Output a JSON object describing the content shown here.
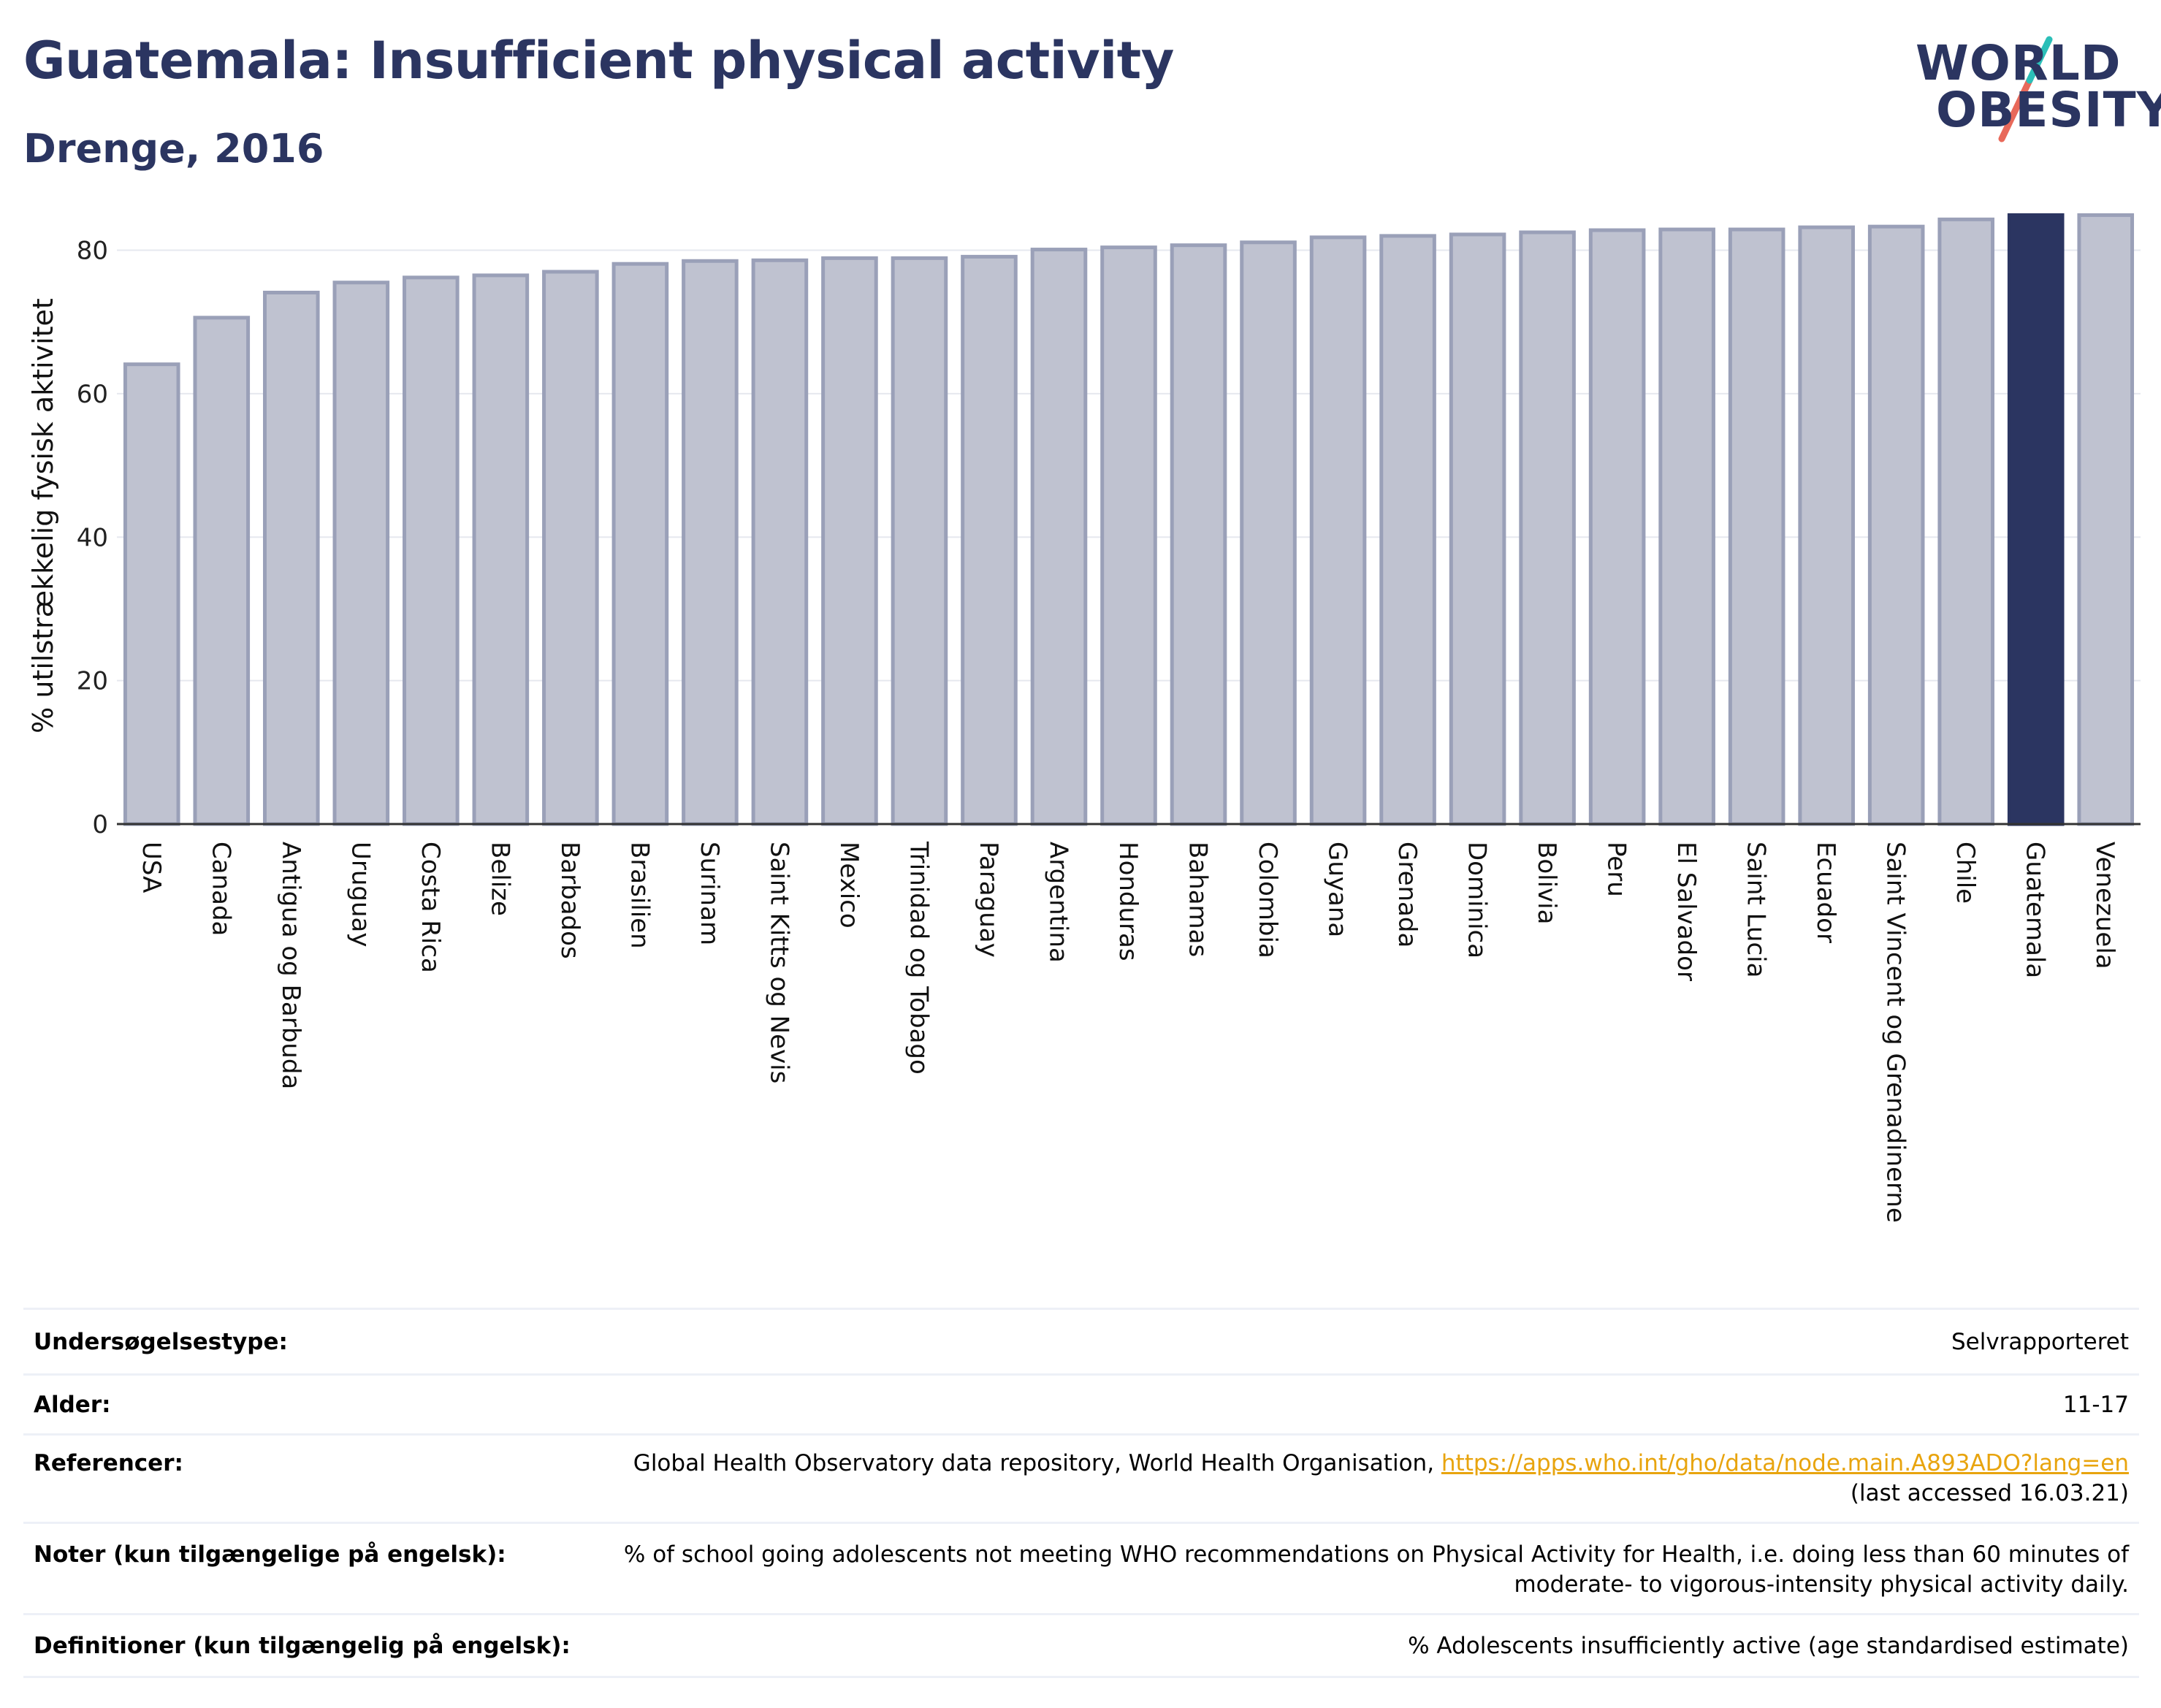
{
  "header": {
    "title": "Guatemala: Insufficient physical activity",
    "subtitle": "Drenge, 2016"
  },
  "logo": {
    "line1": "WORLD",
    "line2": "OBESITY"
  },
  "colors": {
    "title": "#2b3561",
    "bar": "#bfc2d0",
    "bar_border": "#9aa0b8",
    "highlight": "#2b3561",
    "link": "#e8a40e",
    "grid": "#e6e8ef"
  },
  "chart_data": {
    "type": "bar",
    "title": "Guatemala: Insufficient physical activity",
    "subtitle": "Drenge, 2016",
    "ylabel": "% utilstrækkelig fysisk aktivitet",
    "xlabel": "",
    "ylim": [
      0,
      88
    ],
    "yticks": [
      0,
      20,
      40,
      60,
      80
    ],
    "grid": true,
    "highlight": "Guatemala",
    "categories": [
      "USA",
      "Canada",
      "Antigua og Barbuda",
      "Uruguay",
      "Costa Rica",
      "Belize",
      "Barbados",
      "Brasilien",
      "Surinam",
      "Saint Kitts og Nevis",
      "Mexico",
      "Trinidad og Tobago",
      "Paraguay",
      "Argentina",
      "Honduras",
      "Bahamas",
      "Colombia",
      "Guyana",
      "Grenada",
      "Dominica",
      "Bolivia",
      "Peru",
      "El Salvador",
      "Saint Lucia",
      "Ecuador",
      "Saint Vincent og Grenadinerne",
      "Chile",
      "Guatemala",
      "Venezuela"
    ],
    "values": [
      64.1,
      70.6,
      74.1,
      75.5,
      76.2,
      76.5,
      77.0,
      78.1,
      78.5,
      78.6,
      78.9,
      78.9,
      79.1,
      80.1,
      80.4,
      80.7,
      81.1,
      81.8,
      82.0,
      82.2,
      82.5,
      82.8,
      82.9,
      82.9,
      83.2,
      83.3,
      84.3,
      84.9,
      84.9
    ]
  },
  "info": {
    "rows": [
      {
        "label": "Undersøgelsestype:",
        "value": "Selvrapporteret"
      },
      {
        "label": "Alder:",
        "value": "11-17"
      },
      {
        "label": "Referencer:",
        "value": "Global Health Observatory data repository, World Health Organisation, ",
        "link": "https://apps.who.int/gho/data/node.main.A893ADO?lang=en",
        "value2": "(last accessed 16.03.21)"
      },
      {
        "label": "Noter (kun tilgængelige på engelsk):",
        "value": "% of school going adolescents not meeting WHO recommendations on Physical Activity for Health, i.e. doing less than 60 minutes of moderate- to vigorous-intensity physical activity daily."
      },
      {
        "label": "Definitioner (kun tilgængelig på engelsk):",
        "value": "% Adolescents insufficiently active (age standardised estimate)"
      }
    ]
  }
}
